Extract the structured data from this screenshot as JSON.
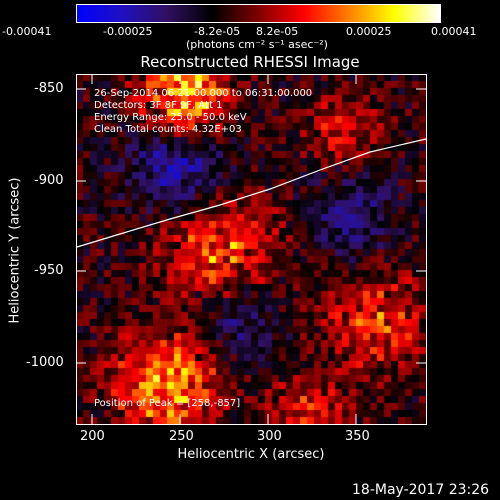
{
  "colorbar": {
    "ticks": [
      "-0.00041",
      "-0.00025",
      "-8.2e-05",
      "8.2e-05",
      "0.00025",
      "0.00041"
    ],
    "units": "(photons cm⁻² s⁻¹ asec⁻²)",
    "colormap": [
      "#0000ff",
      "#2010c0",
      "#301060",
      "#000000",
      "#800000",
      "#ff0000",
      "#ff8000",
      "#ffff00",
      "#ffffff"
    ]
  },
  "plot": {
    "title": "Reconstructed RHESSI Image",
    "xlabel": "Heliocentric X (arcsec)",
    "ylabel": "Heliocentric Y (arcsec)",
    "xticks": [
      "200",
      "250",
      "300",
      "350"
    ],
    "yticks": [
      "-850",
      "-900",
      "-950",
      "-1000"
    ],
    "info_lines": [
      "26-Sep-2014 06:21:00.000 to 06:31:00.000",
      "Detectors: 3F 8F 9F, Att 1",
      "Energy Range: 25.0 - 50.0 keV",
      "Clean    Total counts: 4.32E+03"
    ],
    "peak_label": "Position of Peak = [258,-857]",
    "limb_color": "#ffffff"
  },
  "footer": {
    "timestamp": "18-May-2017 23:26"
  }
}
